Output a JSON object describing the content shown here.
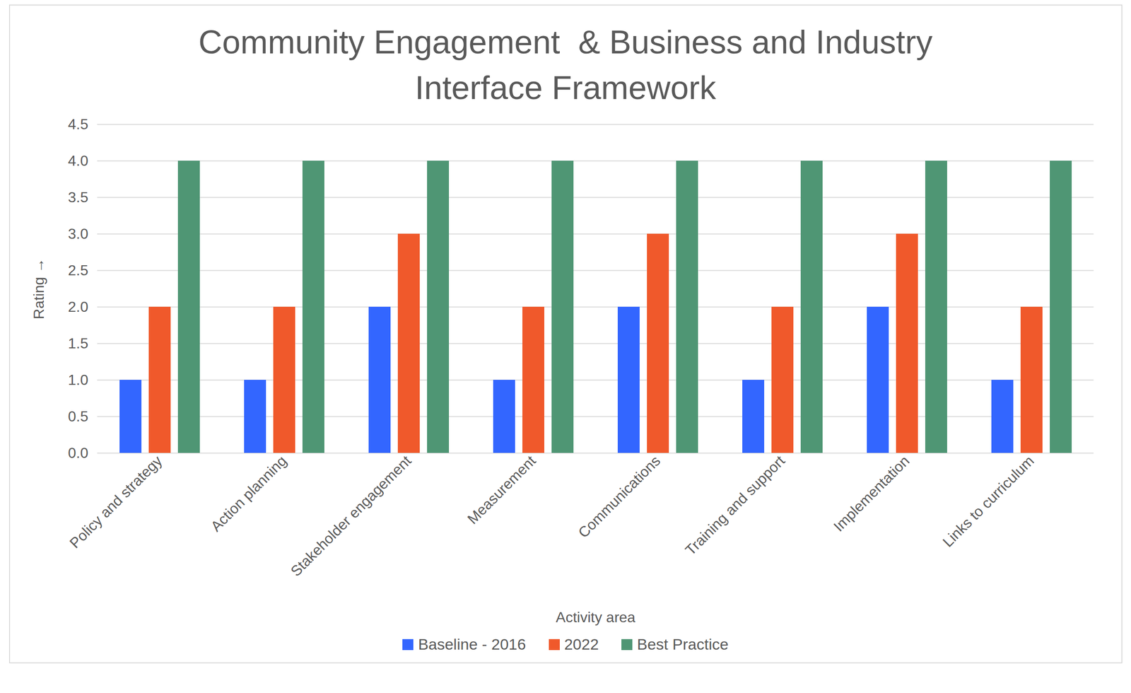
{
  "chart_data": {
    "type": "bar",
    "title": "Community Engagement  & Business and Industry Interface Framework",
    "x_label": "Activity area",
    "y_label": "Rating",
    "categories": [
      "Policy and strategy",
      "Action planning",
      "Stakeholder engagement",
      "Measurement",
      "Communications",
      "Training and support",
      "Implementation",
      "Links to curriculum"
    ],
    "series": [
      {
        "name": "Baseline - 2016",
        "color": "#3366ff",
        "values": [
          1,
          1,
          2,
          1,
          2,
          1,
          2,
          1
        ]
      },
      {
        "name": "2022",
        "color": "#f0592b",
        "values": [
          2,
          2,
          3,
          2,
          3,
          2,
          3,
          2
        ]
      },
      {
        "name": "Best Practice",
        "color": "#4f9674",
        "values": [
          4,
          4,
          4,
          4,
          4,
          4,
          4,
          4
        ]
      }
    ],
    "ylim": [
      0,
      4.5
    ],
    "yticks": [
      0,
      0.5,
      1,
      1.5,
      2,
      2.5,
      3,
      3.5,
      4,
      4.5
    ],
    "grid": true,
    "legend": "bottom"
  }
}
